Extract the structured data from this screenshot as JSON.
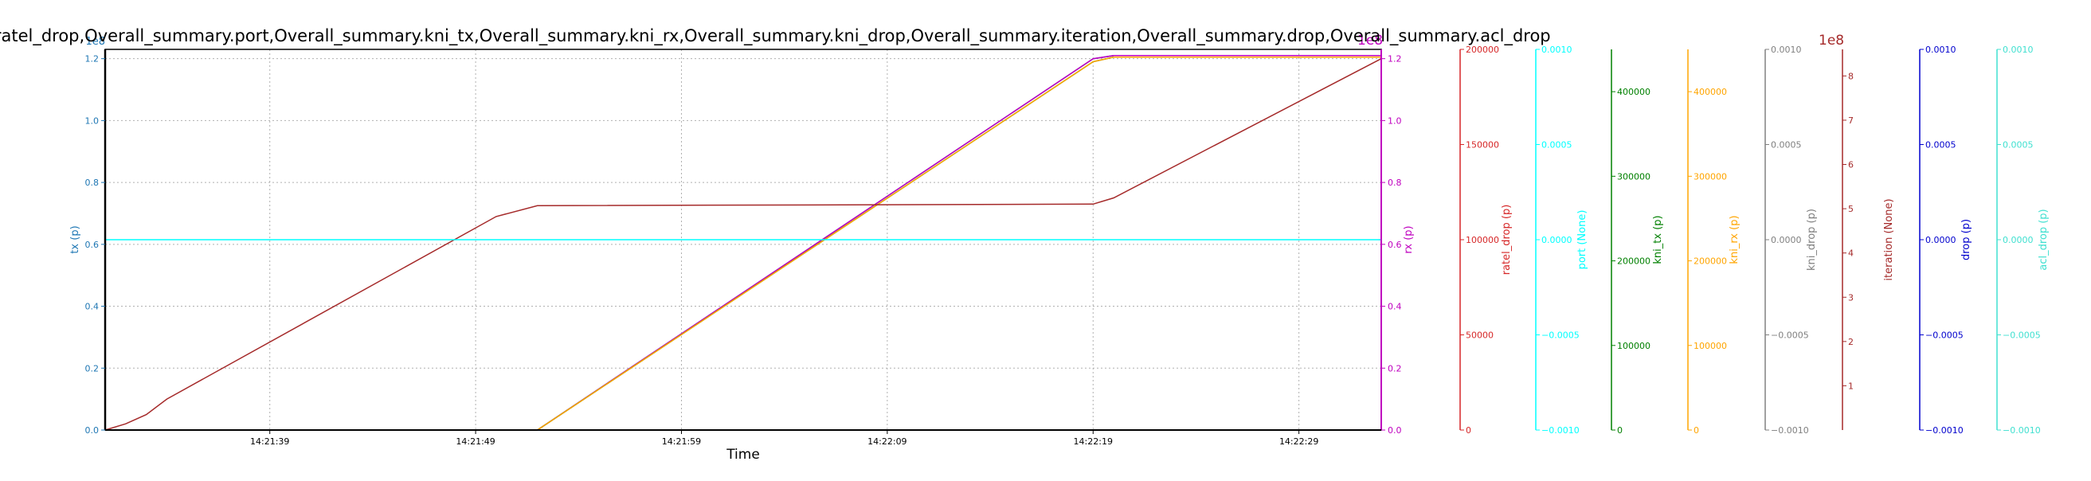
{
  "chart_data": {
    "type": "line",
    "title": "Overall_summary.tx,Overall_summary.rx,Overall_summary.ratel_drop,Overall_summary.port,Overall_summary.kni_tx,Overall_summary.kni_rx,Overall_summary.kni_drop,Overall_summary.iteration,Overall_summary.drop,Overall_summary.acl_drop",
    "xlabel": "Time",
    "x_ticks": [
      "14:21:39",
      "14:21:49",
      "14:21:59",
      "14:22:09",
      "14:22:19",
      "14:22:29"
    ],
    "x_tick_seconds": [
      8.0,
      18.0,
      28.0,
      38.0,
      48.0,
      58.0
    ],
    "xlim_seconds": [
      0,
      62
    ],
    "grid": true,
    "left_axis": {
      "label": "tx (p)",
      "color": "#1f77b4",
      "offset_text": "1e8",
      "ylim": [
        0,
        1.23
      ],
      "ticks": [
        "0.0",
        "0.2",
        "0.4",
        "0.6",
        "0.8",
        "1.0",
        "1.2"
      ]
    },
    "right_axis": {
      "label": "rx (p)",
      "color": "#bf00bf",
      "offset_text": "1e8",
      "ylim": [
        0,
        1.23
      ],
      "ticks": [
        "0.0",
        "0.2",
        "0.4",
        "0.6",
        "0.8",
        "1.0",
        "1.2"
      ]
    },
    "extra_axes": [
      {
        "label": "ratel_drop (p)",
        "color": "#d62728",
        "ticks": [
          "0",
          "50000",
          "100000",
          "150000",
          "200000"
        ],
        "ylim": [
          0,
          200000
        ]
      },
      {
        "label": "port (None)",
        "color": "#00ffff",
        "ticks": [
          "−0.0010",
          "−0.0005",
          "0.0000",
          "0.0005",
          "0.0010"
        ],
        "ylim": [
          -0.001,
          0.001
        ]
      },
      {
        "label": "kni_tx (p)",
        "color": "#008000",
        "ticks": [
          "0",
          "100000",
          "200000",
          "300000",
          "400000"
        ],
        "ylim": [
          0,
          450000
        ]
      },
      {
        "label": "kni_rx (p)",
        "color": "#ffa500",
        "ticks": [
          "0",
          "100000",
          "200000",
          "300000",
          "400000"
        ],
        "ylim": [
          0,
          450000
        ]
      },
      {
        "label": "kni_drop (p)",
        "color": "#808080",
        "ticks": [
          "−0.0010",
          "−0.0005",
          "0.0000",
          "0.0005",
          "0.0010"
        ],
        "ylim": [
          -0.001,
          0.001
        ]
      },
      {
        "label": "iteration (None)",
        "color": "#a52a2a",
        "offset_text": "1e8",
        "ticks": [
          "1",
          "2",
          "3",
          "4",
          "5",
          "6",
          "7",
          "8"
        ],
        "ylim": [
          0,
          8.6
        ]
      },
      {
        "label": "drop (p)",
        "color": "#0000cd",
        "ticks": [
          "−0.0010",
          "−0.0005",
          "0.0000",
          "0.0005",
          "0.0010"
        ],
        "ylim": [
          -0.001,
          0.001
        ]
      },
      {
        "label": "acl_drop (p)",
        "color": "#40e0d0",
        "ticks": [
          "−0.0010",
          "−0.0005",
          "0.0000",
          "0.0005",
          "0.0010"
        ],
        "ylim": [
          -0.001,
          0.001
        ]
      }
    ],
    "series": [
      {
        "name": "tx (p)",
        "color": "#1f77b4",
        "axis": "left",
        "x": [
          0,
          21,
          48,
          49,
          62
        ],
        "y": [
          0,
          0,
          1.2,
          1.21,
          1.21
        ]
      },
      {
        "name": "rx (p)",
        "color": "#bf00bf",
        "axis": "right",
        "x": [
          0,
          21,
          48,
          49,
          62
        ],
        "y": [
          0,
          0,
          1.2,
          1.21,
          1.21
        ]
      },
      {
        "name": "kni_tx (p)",
        "color": "#008000",
        "axis": "left",
        "x": [
          0,
          21,
          48,
          49,
          62
        ],
        "y": [
          0,
          0,
          1.19,
          1.205,
          1.205
        ]
      },
      {
        "name": "kni_rx (p)",
        "color": "#ffa500",
        "axis": "left",
        "x": [
          0,
          21,
          48,
          49,
          62
        ],
        "y": [
          0,
          0,
          1.19,
          1.205,
          1.205
        ]
      },
      {
        "name": "iteration (None)",
        "color": "#a52a2a",
        "axis": "left",
        "x": [
          0,
          1,
          2,
          3,
          19,
          21,
          48,
          49,
          62
        ],
        "y": [
          0,
          0.02,
          0.05,
          0.1,
          0.69,
          0.725,
          0.73,
          0.75,
          1.2
        ]
      },
      {
        "name": "port (None)",
        "color": "#00ffff",
        "axis": "left",
        "x": [
          0,
          62
        ],
        "y": [
          0.615,
          0.615
        ]
      }
    ]
  }
}
